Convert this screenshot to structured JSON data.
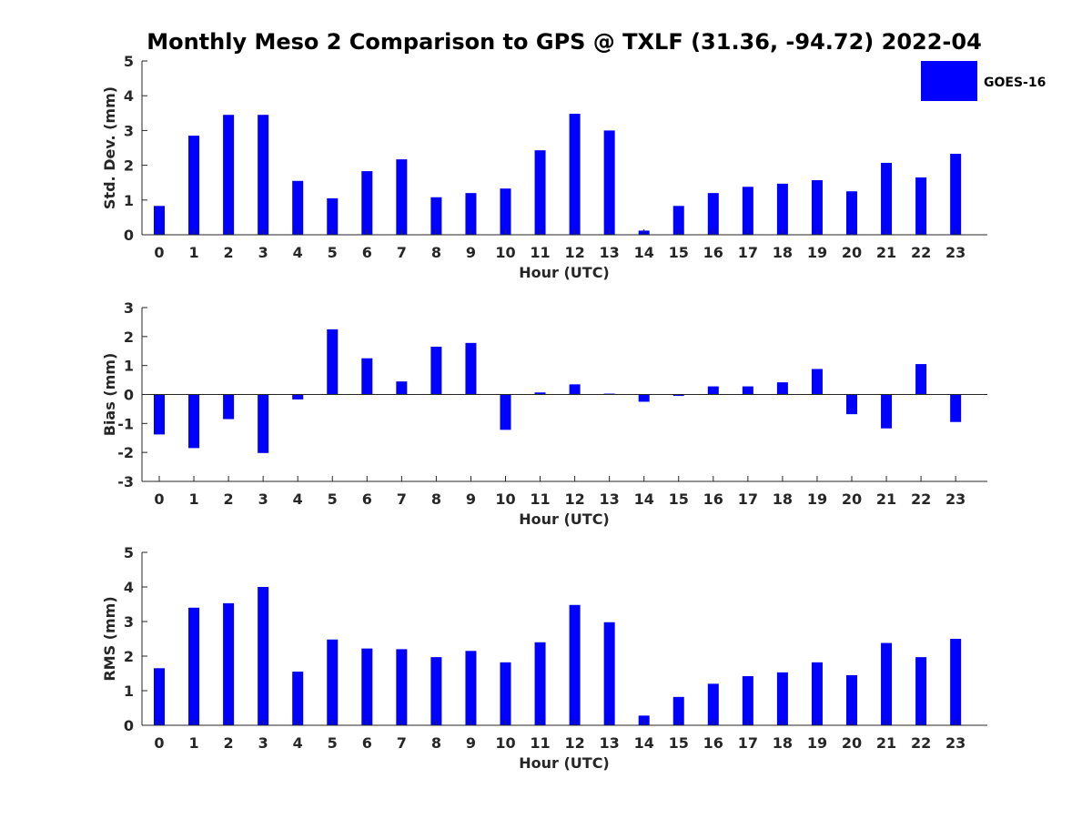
{
  "title": "Monthly Meso 2 Comparison to GPS @ TXLF (31.36, -94.72) 2022-04",
  "colors": {
    "bar": "#0000ff",
    "axis": "#262626"
  },
  "legend": {
    "label": "GOES-16",
    "placement": "top-right"
  },
  "chart_data": [
    {
      "type": "bar",
      "panel": "std",
      "xlabel": "Hour (UTC)",
      "ylabel": "Std. Dev. (mm)",
      "ylim": [
        0,
        5
      ],
      "yticks": [
        0,
        1,
        2,
        3,
        4,
        5
      ],
      "categories": [
        "0",
        "1",
        "2",
        "3",
        "4",
        "5",
        "6",
        "7",
        "8",
        "9",
        "10",
        "11",
        "12",
        "13",
        "14",
        "15",
        "16",
        "17",
        "18",
        "19",
        "20",
        "21",
        "22",
        "23"
      ],
      "series": [
        {
          "name": "GOES-16",
          "values": [
            0.83,
            2.85,
            3.45,
            3.45,
            1.55,
            1.05,
            1.83,
            2.17,
            1.08,
            1.2,
            1.33,
            2.43,
            3.48,
            3.0,
            0.12,
            0.83,
            1.2,
            1.38,
            1.47,
            1.57,
            1.25,
            2.07,
            1.65,
            2.33
          ]
        }
      ]
    },
    {
      "type": "bar",
      "panel": "bias",
      "xlabel": "Hour (UTC)",
      "ylabel": "Bias (mm)",
      "ylim": [
        -3,
        3
      ],
      "yticks": [
        -3,
        -2,
        -1,
        0,
        1,
        2,
        3
      ],
      "categories": [
        "0",
        "1",
        "2",
        "3",
        "4",
        "5",
        "6",
        "7",
        "8",
        "9",
        "10",
        "11",
        "12",
        "13",
        "14",
        "15",
        "16",
        "17",
        "18",
        "19",
        "20",
        "21",
        "22",
        "23"
      ],
      "series": [
        {
          "name": "GOES-16",
          "values": [
            -1.38,
            -1.85,
            -0.85,
            -2.02,
            -0.17,
            2.25,
            1.25,
            0.45,
            1.65,
            1.78,
            -1.22,
            0.07,
            0.35,
            0.03,
            -0.25,
            -0.05,
            0.28,
            0.28,
            0.42,
            0.88,
            -0.68,
            -1.17,
            1.05,
            -0.95
          ]
        }
      ]
    },
    {
      "type": "bar",
      "panel": "rms",
      "xlabel": "Hour (UTC)",
      "ylabel": "RMS (mm)",
      "ylim": [
        0,
        5
      ],
      "yticks": [
        0,
        1,
        2,
        3,
        4,
        5
      ],
      "categories": [
        "0",
        "1",
        "2",
        "3",
        "4",
        "5",
        "6",
        "7",
        "8",
        "9",
        "10",
        "11",
        "12",
        "13",
        "14",
        "15",
        "16",
        "17",
        "18",
        "19",
        "20",
        "21",
        "22",
        "23"
      ],
      "series": [
        {
          "name": "GOES-16",
          "values": [
            1.65,
            3.4,
            3.53,
            4.0,
            1.55,
            2.48,
            2.22,
            2.2,
            1.97,
            2.15,
            1.82,
            2.4,
            3.48,
            2.98,
            0.28,
            0.82,
            1.2,
            1.42,
            1.53,
            1.82,
            1.45,
            2.38,
            1.97,
            2.5
          ]
        }
      ]
    }
  ]
}
